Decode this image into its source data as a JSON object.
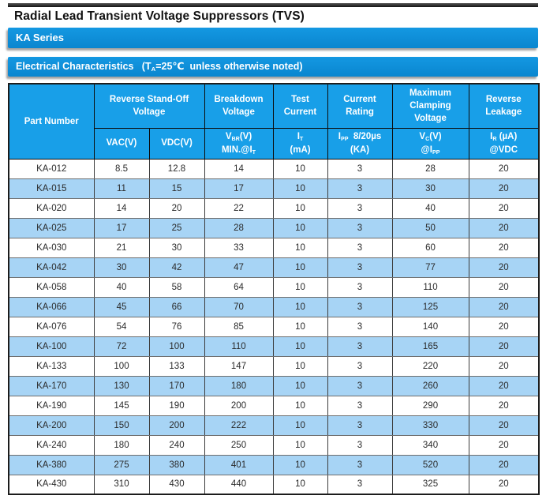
{
  "page_title": "Radial Lead Transient Voltage Suppressors (TVS)",
  "bars": {
    "series_label": "KA Series",
    "section_parts": [
      {
        "t": "Electrical Characteristics   (T"
      },
      {
        "t": "A",
        "sub": true
      },
      {
        "t": "=25℃  unless otherwise noted)"
      }
    ]
  },
  "colors": {
    "bar_blue": "#0a86cf",
    "bar_blue_light": "#1498e2",
    "header_blue": "#189fe8",
    "row_alt_blue": "#a7d4f5",
    "border_dark": "#1c1c1c",
    "text_dark": "#2a2a2a"
  },
  "table": {
    "group_headers": {
      "part_number": "Part Number",
      "reverse_standoff": "Reverse Stand-Off Voltage",
      "breakdown": "Breakdown Voltage",
      "test_current": "Test Current",
      "current_rating": "Current Rating",
      "max_clamping": "Maximum Clamping Voltage",
      "reverse_leakage": "Reverse Leakage"
    },
    "sub_headers": {
      "vac": [
        {
          "t": "VAC(V)"
        }
      ],
      "vdc": [
        {
          "t": "VDC(V)"
        }
      ],
      "vbr_l1": [
        {
          "t": "V"
        },
        {
          "t": "BR",
          "sub": true
        },
        {
          "t": "(V)"
        }
      ],
      "vbr_l2": [
        {
          "t": "MIN.@I"
        },
        {
          "t": "T",
          "sub": true
        }
      ],
      "it_l1": [
        {
          "t": "I"
        },
        {
          "t": "T",
          "sub": true
        }
      ],
      "it_l2": [
        {
          "t": "(mA)"
        }
      ],
      "ipp_l1": [
        {
          "t": "I"
        },
        {
          "t": "PP",
          "sub": true
        },
        {
          "t": "  8/20µs"
        }
      ],
      "ipp_l2": [
        {
          "t": "(KA)"
        }
      ],
      "vc_l1": [
        {
          "t": "V"
        },
        {
          "t": "C",
          "sub": true
        },
        {
          "t": "(V)"
        }
      ],
      "vc_l2": [
        {
          "t": "@I"
        },
        {
          "t": "PP",
          "sub": true
        }
      ],
      "ir_l1": [
        {
          "t": "I"
        },
        {
          "t": "R",
          "sub": true
        },
        {
          "t": " (µA)"
        }
      ],
      "ir_l2": [
        {
          "t": "@VDC"
        }
      ]
    },
    "rows": [
      [
        "KA-012",
        "8.5",
        "12.8",
        "14",
        "10",
        "3",
        "28",
        "20"
      ],
      [
        "KA-015",
        "11",
        "15",
        "17",
        "10",
        "3",
        "30",
        "20"
      ],
      [
        "KA-020",
        "14",
        "20",
        "22",
        "10",
        "3",
        "40",
        "20"
      ],
      [
        "KA-025",
        "17",
        "25",
        "28",
        "10",
        "3",
        "50",
        "20"
      ],
      [
        "KA-030",
        "21",
        "30",
        "33",
        "10",
        "3",
        "60",
        "20"
      ],
      [
        "KA-042",
        "30",
        "42",
        "47",
        "10",
        "3",
        "77",
        "20"
      ],
      [
        "KA-058",
        "40",
        "58",
        "64",
        "10",
        "3",
        "110",
        "20"
      ],
      [
        "KA-066",
        "45",
        "66",
        "70",
        "10",
        "3",
        "125",
        "20"
      ],
      [
        "KA-076",
        "54",
        "76",
        "85",
        "10",
        "3",
        "140",
        "20"
      ],
      [
        "KA-100",
        "72",
        "100",
        "110",
        "10",
        "3",
        "165",
        "20"
      ],
      [
        "KA-133",
        "100",
        "133",
        "147",
        "10",
        "3",
        "220",
        "20"
      ],
      [
        "KA-170",
        "130",
        "170",
        "180",
        "10",
        "3",
        "260",
        "20"
      ],
      [
        "KA-190",
        "145",
        "190",
        "200",
        "10",
        "3",
        "290",
        "20"
      ],
      [
        "KA-200",
        "150",
        "200",
        "222",
        "10",
        "3",
        "330",
        "20"
      ],
      [
        "KA-240",
        "180",
        "240",
        "250",
        "10",
        "3",
        "340",
        "20"
      ],
      [
        "KA-380",
        "275",
        "380",
        "401",
        "10",
        "3",
        "520",
        "20"
      ],
      [
        "KA-430",
        "310",
        "430",
        "440",
        "10",
        "3",
        "325",
        "20"
      ]
    ]
  }
}
